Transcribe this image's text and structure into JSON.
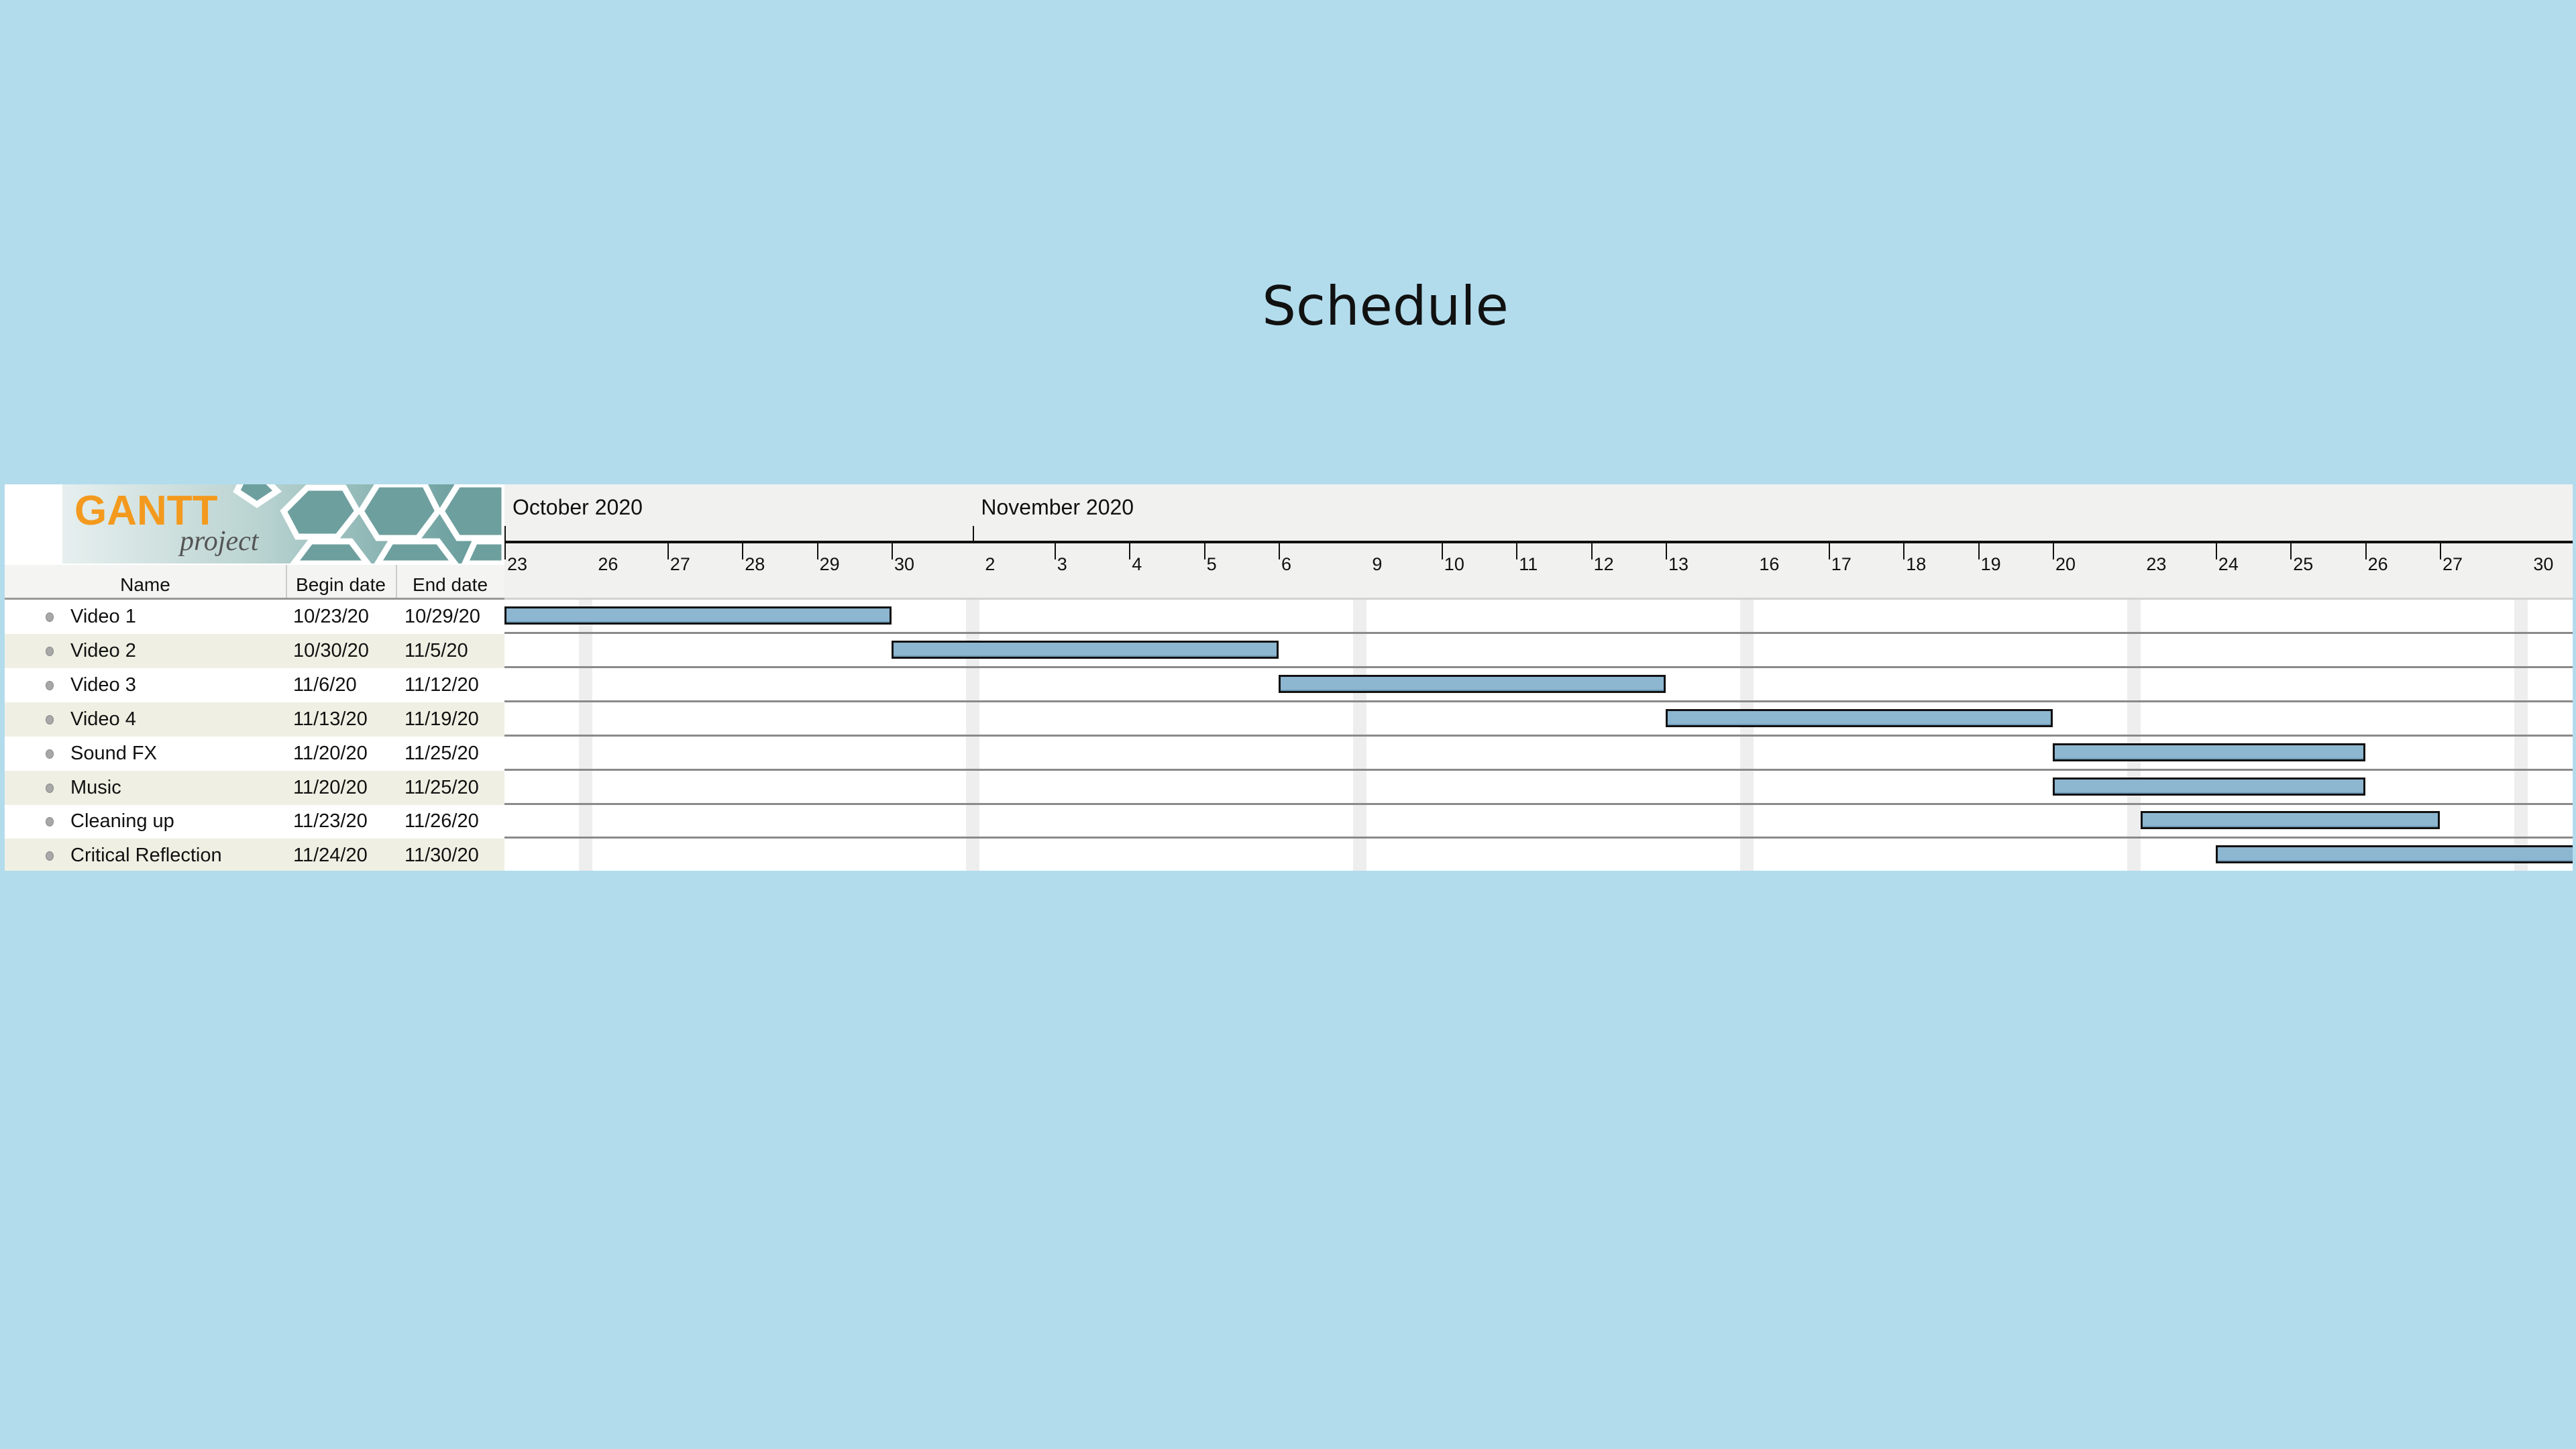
{
  "slide": {
    "title": "Schedule"
  },
  "logo": {
    "text": "GANTT",
    "subtext": "project"
  },
  "table": {
    "columns": [
      "Name",
      "Begin date",
      "End date"
    ],
    "tasks": [
      {
        "name": "Video 1",
        "begin": "10/23/20",
        "end": "10/29/20"
      },
      {
        "name": "Video 2",
        "begin": "10/30/20",
        "end": "11/5/20"
      },
      {
        "name": "Video 3",
        "begin": "11/6/20",
        "end": "11/12/20"
      },
      {
        "name": "Video 4",
        "begin": "11/13/20",
        "end": "11/19/20"
      },
      {
        "name": "Sound FX",
        "begin": "11/20/20",
        "end": "11/25/20"
      },
      {
        "name": "Music",
        "begin": "11/20/20",
        "end": "11/25/20"
      },
      {
        "name": "Cleaning up",
        "begin": "11/23/20",
        "end": "11/26/20"
      },
      {
        "name": "Critical Reflection",
        "begin": "11/24/20",
        "end": "11/30/20"
      }
    ]
  },
  "timeline": {
    "months": [
      "October 2020",
      "November 2020"
    ],
    "day_labels": [
      "23",
      "26",
      "27",
      "28",
      "29",
      "30",
      "2",
      "3",
      "4",
      "5",
      "6",
      "9",
      "10",
      "11",
      "12",
      "13",
      "16",
      "17",
      "18",
      "19",
      "20",
      "23",
      "24",
      "25",
      "26",
      "27",
      "30"
    ]
  },
  "colors": {
    "background": "#b2dcec",
    "bar": "#8db6d1",
    "alt_row": "#eff0e3",
    "logo_orange": "#f39a1e",
    "logo_teal": "#5f9797"
  }
}
